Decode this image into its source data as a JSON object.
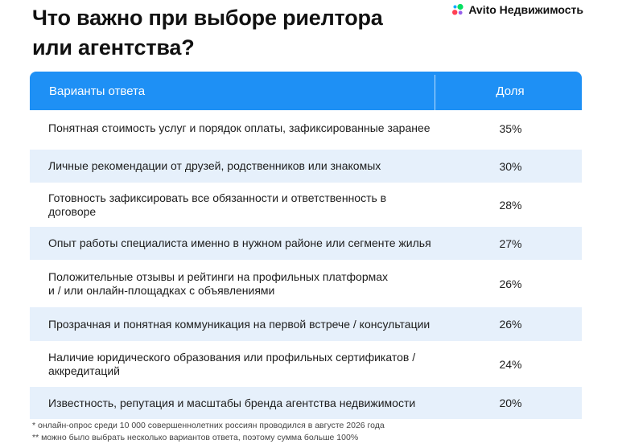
{
  "title_lines": [
    "Что важно при выборе риелтора",
    "или агентства?"
  ],
  "brand": {
    "name": "Avito Недвижимость",
    "logo_colors": [
      "#04e061",
      "#ff4053",
      "#965eeb",
      "#0af"
    ]
  },
  "colors": {
    "header": "#1e90f5",
    "row_alt": "#e6f0fb"
  },
  "chart_data": {
    "type": "table",
    "columns": [
      "Варианты ответа",
      "Доля"
    ],
    "rows": [
      {
        "lines": [
          "Понятная стоимость услуг и порядок оплаты, зафиксированные заранее"
        ],
        "value": "35%"
      },
      {
        "lines": [
          "Личные рекомендации от друзей, родственников или знакомых"
        ],
        "value": "30%"
      },
      {
        "lines": [
          "Готовность зафиксировать все обязанности и ответственность в договоре"
        ],
        "value": "28%"
      },
      {
        "lines": [
          "Опыт работы специалиста именно в нужном районе или сегменте жилья"
        ],
        "value": "27%"
      },
      {
        "lines": [
          "Положительные отзывы и рейтинги на профильных платформах",
          "и / или онлайн-площадках с объявлениями"
        ],
        "value": "26%"
      },
      {
        "lines": [
          "Прозрачная и понятная коммуникация на первой встрече / консультации"
        ],
        "value": "26%"
      },
      {
        "lines": [
          "Наличие юридического образования или профильных сертификатов /",
          "аккредитаций"
        ],
        "value": "24%"
      },
      {
        "lines": [
          "Известность, репутация и масштабы бренда агентства недвижимости"
        ],
        "value": "20%"
      }
    ]
  },
  "footnotes": [
    "* онлайн-опрос среди 10 000 совершеннолетних россиян проводился в августе 2026 года",
    "** можно было выбрать несколько вариантов ответа, поэтому сумма больше 100%"
  ]
}
